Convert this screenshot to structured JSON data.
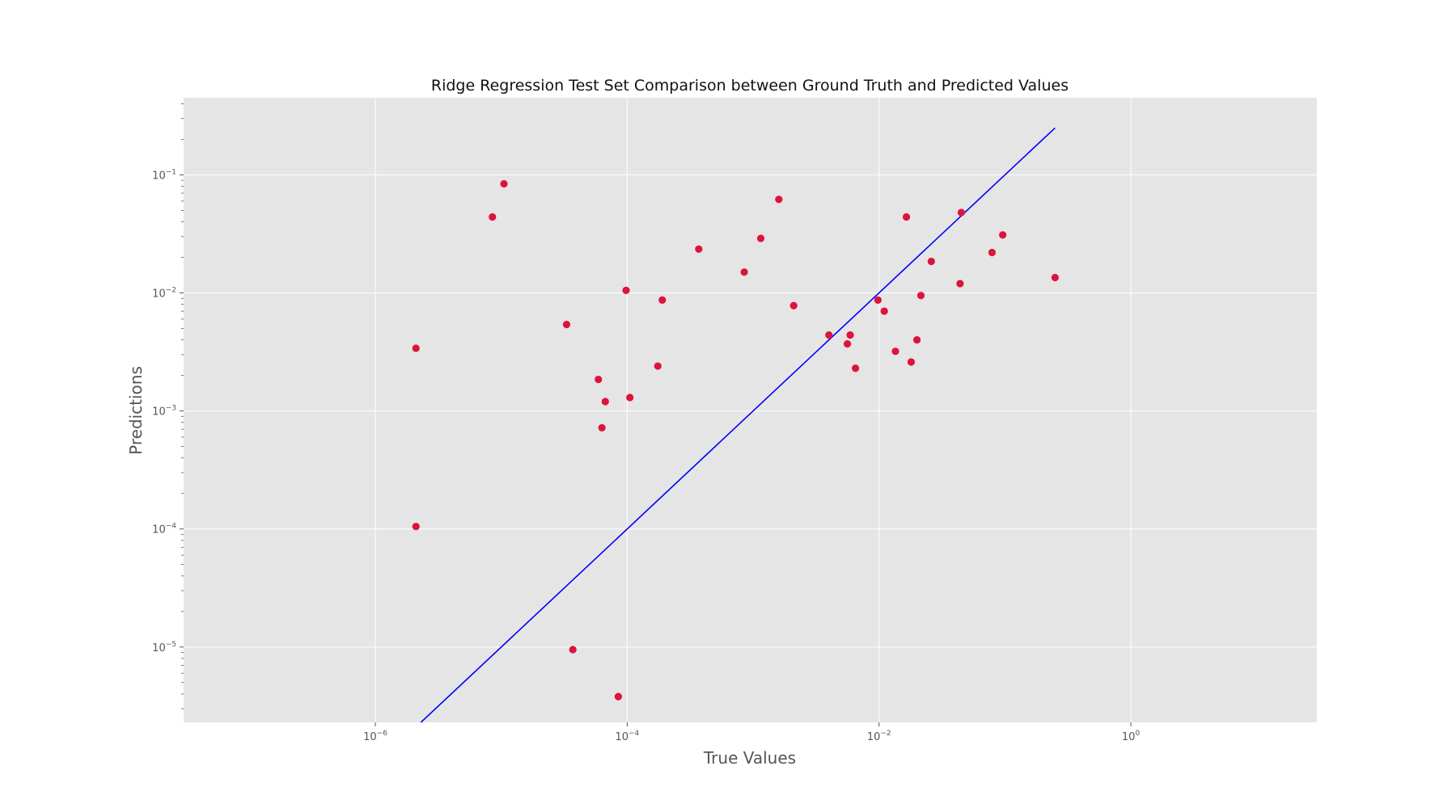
{
  "chart_data": {
    "type": "scatter",
    "title": "Ridge Regression Test Set Comparison between Ground Truth and Predicted Values",
    "xlabel": "True Values",
    "ylabel": "Predictions",
    "xscale": "log",
    "yscale": "log",
    "xlim": [
      3e-08,
      30
    ],
    "ylim": [
      2.3e-06,
      0.45
    ],
    "xticks": [
      {
        "base": "10",
        "exp": "−6",
        "value": 1e-06
      },
      {
        "base": "10",
        "exp": "−4",
        "value": 0.0001
      },
      {
        "base": "10",
        "exp": "−2",
        "value": 0.01
      },
      {
        "base": "10",
        "exp": "0",
        "value": 1
      }
    ],
    "yticks": [
      {
        "base": "10",
        "exp": "−5",
        "value": 1e-05
      },
      {
        "base": "10",
        "exp": "−4",
        "value": 0.0001
      },
      {
        "base": "10",
        "exp": "−3",
        "value": 0.001
      },
      {
        "base": "10",
        "exp": "−2",
        "value": 0.01
      },
      {
        "base": "10",
        "exp": "−1",
        "value": 0.1
      }
    ],
    "grid": true,
    "colors": {
      "background": "#e5e5e5",
      "points": "#dc143c",
      "line": "#0000ff",
      "grid": "#ffffff"
    },
    "reference_line": {
      "x": [
        2.1e-06,
        0.25
      ],
      "y": [
        2.1e-06,
        0.25
      ]
    },
    "points": [
      {
        "x": 2.1e-06,
        "y": 0.0034
      },
      {
        "x": 2.1e-06,
        "y": 0.000105
      },
      {
        "x": 8.5e-06,
        "y": 0.044
      },
      {
        "x": 1.05e-05,
        "y": 0.084
      },
      {
        "x": 3.3e-05,
        "y": 0.0054
      },
      {
        "x": 3.7e-05,
        "y": 9.5e-06
      },
      {
        "x": 5.9e-05,
        "y": 0.00185
      },
      {
        "x": 6.3e-05,
        "y": 0.00072
      },
      {
        "x": 6.7e-05,
        "y": 0.0012
      },
      {
        "x": 8.5e-05,
        "y": 3.8e-06
      },
      {
        "x": 9.8e-05,
        "y": 0.0105
      },
      {
        "x": 0.000105,
        "y": 0.0013
      },
      {
        "x": 0.000175,
        "y": 0.0024
      },
      {
        "x": 0.00019,
        "y": 0.0087
      },
      {
        "x": 0.00037,
        "y": 0.0235
      },
      {
        "x": 0.00085,
        "y": 0.015
      },
      {
        "x": 0.00115,
        "y": 0.029
      },
      {
        "x": 0.0016,
        "y": 0.062
      },
      {
        "x": 0.0021,
        "y": 0.0078
      },
      {
        "x": 0.004,
        "y": 0.0044
      },
      {
        "x": 0.0056,
        "y": 0.0037
      },
      {
        "x": 0.0059,
        "y": 0.0044
      },
      {
        "x": 0.0065,
        "y": 0.0023
      },
      {
        "x": 0.0098,
        "y": 0.0087
      },
      {
        "x": 0.011,
        "y": 0.007
      },
      {
        "x": 0.0135,
        "y": 0.0032
      },
      {
        "x": 0.0165,
        "y": 0.044
      },
      {
        "x": 0.018,
        "y": 0.0026
      },
      {
        "x": 0.02,
        "y": 0.004
      },
      {
        "x": 0.0215,
        "y": 0.0095
      },
      {
        "x": 0.026,
        "y": 0.0185
      },
      {
        "x": 0.044,
        "y": 0.012
      },
      {
        "x": 0.045,
        "y": 0.048
      },
      {
        "x": 0.079,
        "y": 0.022
      },
      {
        "x": 0.096,
        "y": 0.031
      },
      {
        "x": 0.25,
        "y": 0.0135
      }
    ]
  }
}
